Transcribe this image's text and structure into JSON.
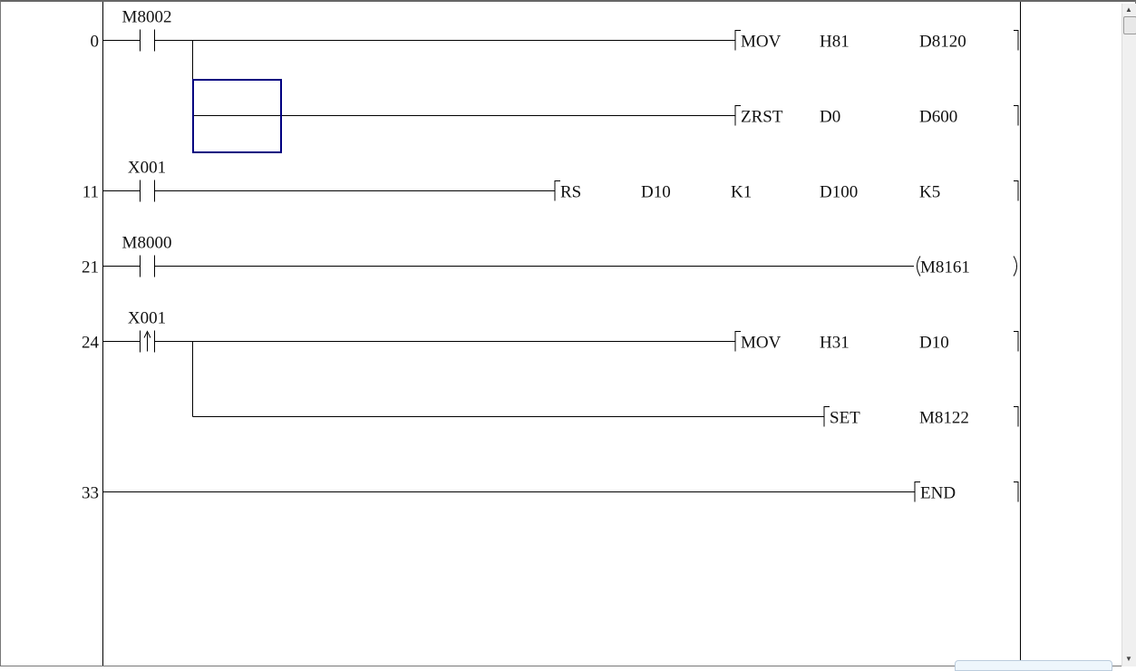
{
  "ladder": {
    "rungs": [
      {
        "step": "0",
        "contact": "M8002",
        "contact_type": "normally-open",
        "instruction": [
          "MOV",
          "H81",
          "D8120"
        ]
      },
      {
        "step": "",
        "contact": "",
        "instruction": [
          "ZRST",
          "D0",
          "D600"
        ],
        "branch": true
      },
      {
        "step": "11",
        "contact": "X001",
        "contact_type": "normally-open",
        "instruction": [
          "RS",
          "D10",
          "K1",
          "D100",
          "K5"
        ]
      },
      {
        "step": "21",
        "contact": "M8000",
        "contact_type": "normally-open",
        "coil": "M8161"
      },
      {
        "step": "24",
        "contact": "X001",
        "contact_type": "rising-edge",
        "instruction": [
          "MOV",
          "H31",
          "D10"
        ]
      },
      {
        "step": "",
        "contact": "",
        "instruction": [
          "SET",
          "M8122"
        ],
        "branch": true
      },
      {
        "step": "33",
        "contact": "",
        "instruction": [
          "END"
        ]
      }
    ],
    "cursor_color": "#000080"
  }
}
